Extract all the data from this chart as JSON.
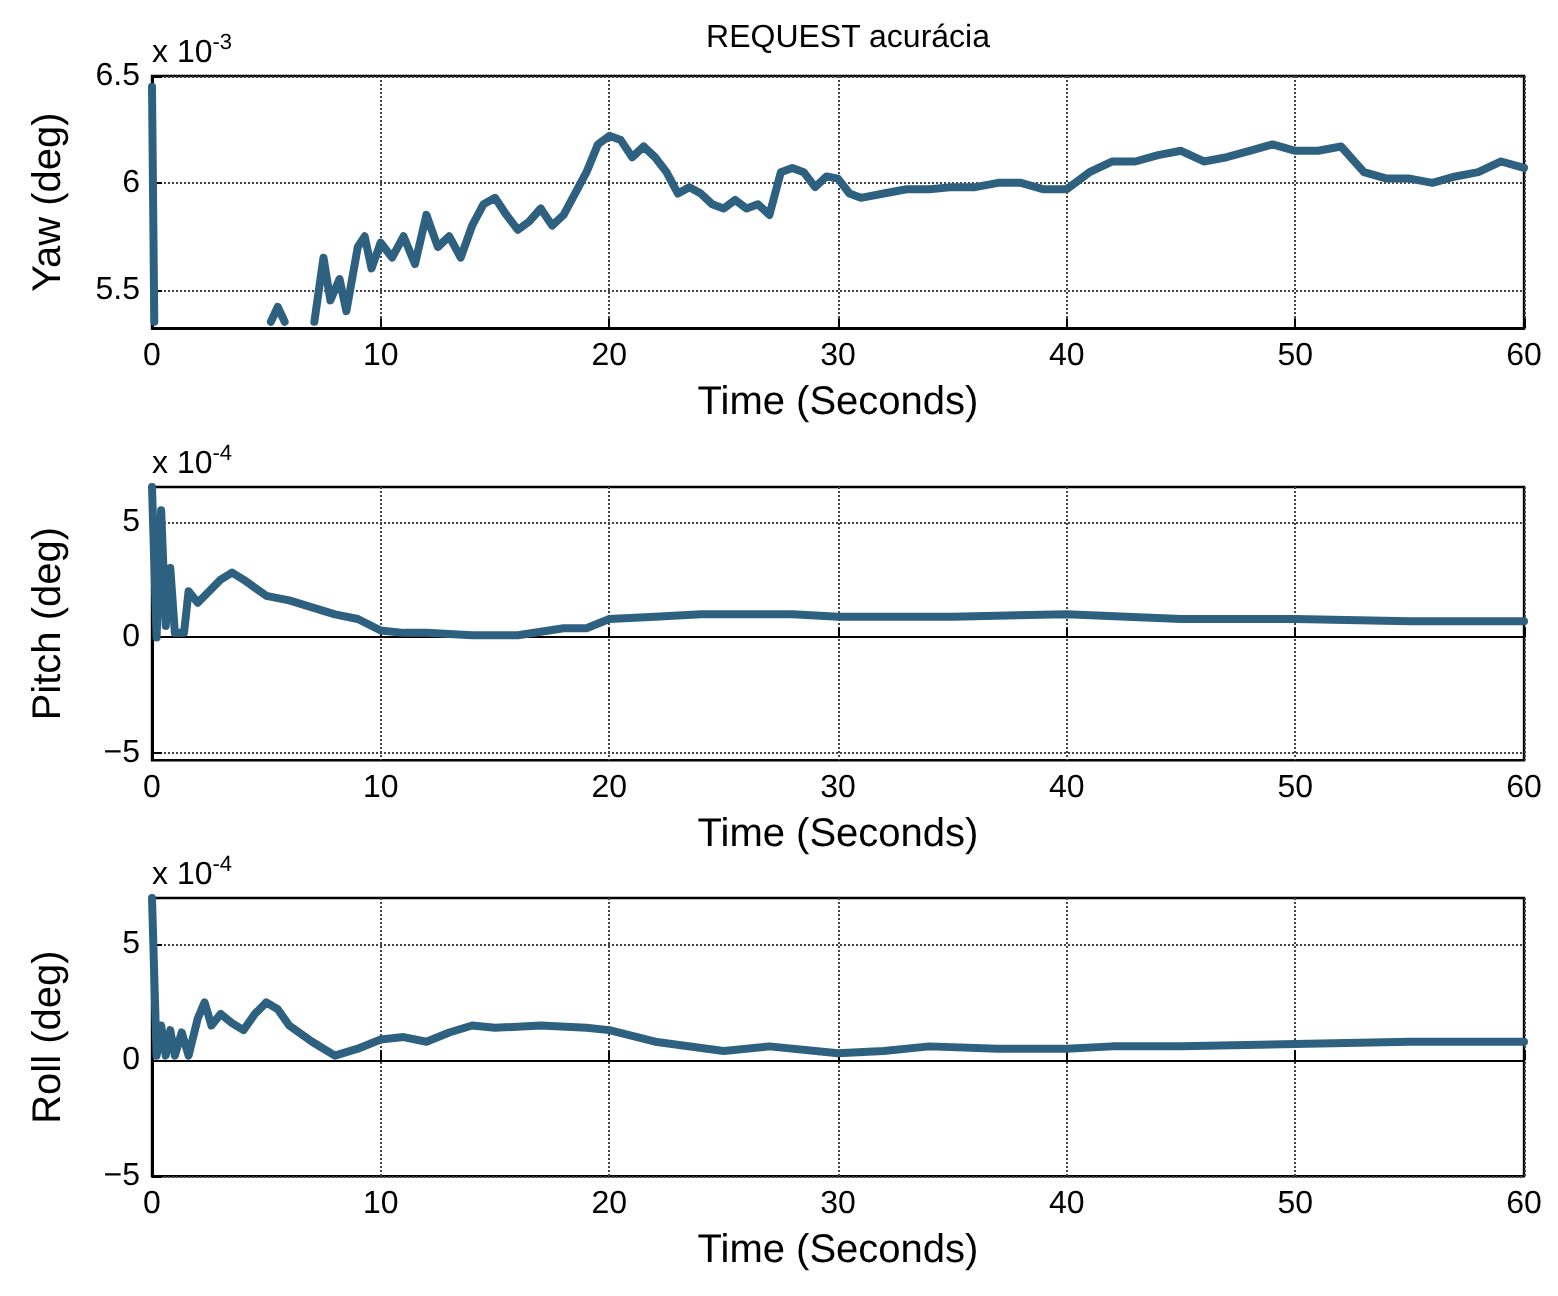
{
  "chart_data": [
    {
      "type": "line",
      "title": "REQUEST acurácia",
      "xlabel": "Time (Seconds)",
      "ylabel": "Yaw (deg)",
      "annotations": [
        "x 10$^{-3}$"
      ],
      "series": [
        {
          "color": "#2e6180",
          "x": [
            0,
            0.1,
            3,
            5.2,
            5.5,
            5.8,
            6.5,
            7.1,
            7.5,
            7.8,
            8.2,
            8.5,
            9,
            9.3,
            9.6,
            10,
            10.5,
            11,
            11.5,
            12,
            12.5,
            13,
            13.5,
            14,
            14.5,
            15,
            15.5,
            16,
            16.5,
            17,
            17.5,
            18,
            18.5,
            19,
            19.5,
            20,
            20.5,
            21,
            21.5,
            22,
            22.5,
            23,
            23.5,
            24,
            24.5,
            25,
            25.5,
            26,
            26.5,
            27,
            27.5,
            28,
            28.5,
            29,
            29.5,
            30,
            30.5,
            31,
            32,
            33,
            34,
            35,
            36,
            37,
            38,
            39,
            40,
            41,
            42,
            43,
            44,
            45,
            46,
            47,
            48,
            49,
            50,
            51,
            52,
            53,
            54,
            55,
            56,
            57,
            58,
            59,
            60
          ],
          "values": [
            6.45,
            5.35,
            null,
            5.35,
            5.42,
            5.35,
            null,
            5.35,
            5.65,
            5.45,
            5.55,
            5.4,
            5.7,
            5.75,
            5.6,
            5.72,
            5.65,
            5.75,
            5.62,
            5.85,
            5.7,
            5.75,
            5.65,
            5.8,
            5.9,
            5.93,
            5.85,
            5.78,
            5.82,
            5.88,
            5.8,
            5.85,
            5.95,
            6.05,
            6.18,
            6.22,
            6.2,
            6.12,
            6.17,
            6.12,
            6.05,
            5.95,
            5.98,
            5.95,
            5.9,
            5.88,
            5.92,
            5.88,
            5.9,
            5.85,
            6.05,
            6.07,
            6.05,
            5.98,
            6.03,
            6.02,
            5.95,
            5.93,
            5.95,
            5.97,
            5.97,
            5.98,
            5.98,
            6.0,
            6.0,
            5.97,
            5.97,
            6.05,
            6.1,
            6.1,
            6.13,
            6.15,
            6.1,
            6.12,
            6.15,
            6.18,
            6.15,
            6.15,
            6.17,
            6.05,
            6.02,
            6.02,
            6.0,
            6.03,
            6.05,
            6.1,
            6.07
          ]
        }
      ],
      "xlim": [
        0,
        60
      ],
      "xticks": [
        0,
        10,
        20,
        30,
        40,
        50,
        60
      ],
      "ylim": [
        5.32,
        6.5
      ],
      "yticks": [
        5.5,
        6,
        6.5
      ],
      "grid": true,
      "line_style": "solid",
      "marker": "none"
    },
    {
      "type": "line",
      "xlabel": "Time (Seconds)",
      "ylabel": "Pitch (deg)",
      "annotations": [
        "x 10$^{-4}$"
      ],
      "series": [
        {
          "color": "#2e6180",
          "x": [
            0,
            0.2,
            0.4,
            0.6,
            0.8,
            1,
            1.4,
            1.6,
            2,
            2.5,
            3,
            3.5,
            4,
            5,
            6,
            7,
            8,
            9,
            10,
            11,
            12,
            14,
            16,
            18,
            19,
            20,
            22,
            24,
            26,
            28,
            30,
            35,
            40,
            45,
            50,
            55,
            60
          ],
          "values": [
            6.5,
            0,
            5.5,
            0.5,
            3,
            0.2,
            0.2,
            2,
            1.5,
            2,
            2.5,
            2.8,
            2.5,
            1.8,
            1.6,
            1.3,
            1.0,
            0.8,
            0.3,
            0.2,
            0.2,
            0.1,
            0.1,
            0.4,
            0.4,
            0.8,
            0.9,
            1.0,
            1.0,
            1.0,
            0.9,
            0.9,
            1.0,
            0.8,
            0.8,
            0.7,
            0.7
          ]
        }
      ],
      "xlim": [
        0,
        60
      ],
      "xticks": [
        0,
        10,
        20,
        30,
        40,
        50,
        60
      ],
      "ylim": [
        -5.3,
        6.5
      ],
      "yticks": [
        -5,
        0,
        5
      ],
      "grid": true,
      "line_style": "solid",
      "marker": "none"
    },
    {
      "type": "line",
      "xlabel": "Time (Seconds)",
      "ylabel": "Roll (deg)",
      "annotations": [
        "x 10$^{-4}$"
      ],
      "series": [
        {
          "color": "#2e6180",
          "x": [
            0,
            0.2,
            0.4,
            0.6,
            0.8,
            1,
            1.3,
            1.6,
            2,
            2.3,
            2.6,
            3,
            3.5,
            4,
            4.5,
            5,
            5.5,
            6,
            7,
            8,
            9,
            10,
            11,
            12,
            13,
            14,
            15,
            17,
            19,
            20,
            22,
            25,
            27,
            30,
            32,
            34,
            37,
            40,
            42,
            45,
            50,
            55,
            60
          ],
          "values": [
            7,
            0.2,
            1.5,
            0.2,
            1.3,
            0.2,
            1.2,
            0.2,
            1.8,
            2.5,
            1.5,
            2.0,
            1.6,
            1.3,
            2.0,
            2.5,
            2.2,
            1.5,
            0.8,
            0.2,
            0.5,
            0.9,
            1.0,
            0.8,
            1.2,
            1.5,
            1.4,
            1.5,
            1.4,
            1.3,
            0.8,
            0.4,
            0.6,
            0.3,
            0.4,
            0.6,
            0.5,
            0.5,
            0.6,
            0.6,
            0.7,
            0.8,
            0.8
          ]
        }
      ],
      "xlim": [
        0,
        60
      ],
      "xticks": [
        0,
        10,
        20,
        30,
        40,
        50,
        60
      ],
      "ylim": [
        -5,
        7
      ],
      "yticks": [
        -5,
        0,
        5
      ],
      "grid": true,
      "line_style": "solid",
      "marker": "none"
    }
  ]
}
